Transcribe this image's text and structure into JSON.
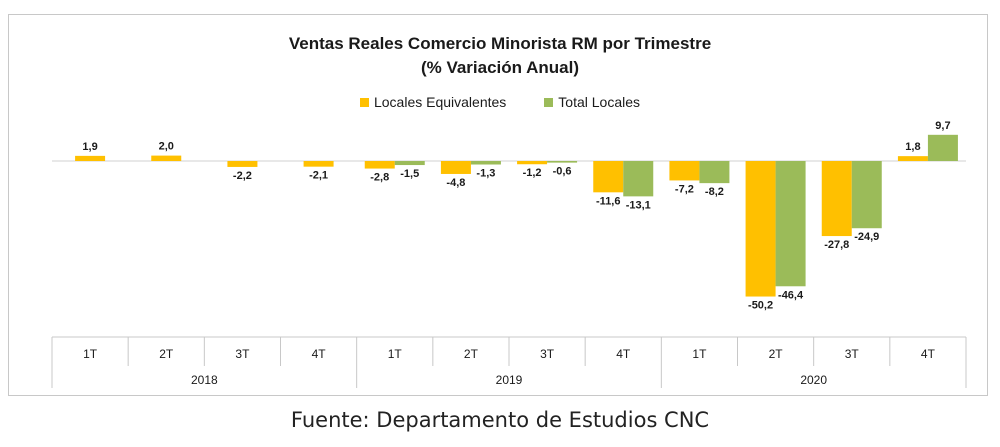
{
  "chart_data": {
    "type": "bar",
    "title": "Ventas Reales Comercio Minorista RM por Trimestre",
    "subtitle": "(% Variación Anual)",
    "categories": [
      "1T",
      "2T",
      "3T",
      "4T",
      "1T",
      "2T",
      "3T",
      "4T",
      "1T",
      "2T",
      "3T",
      "4T"
    ],
    "groups": [
      {
        "label": "2018",
        "count": 4
      },
      {
        "label": "2019",
        "count": 4
      },
      {
        "label": "2020",
        "count": 4
      }
    ],
    "series": [
      {
        "name": "Locales Equivalentes",
        "color": "#FFC000",
        "values": [
          1.9,
          2.0,
          -2.2,
          -2.1,
          -2.8,
          -4.8,
          -1.2,
          -11.6,
          -7.2,
          -50.2,
          -27.8,
          1.8
        ],
        "labels": [
          "1,9",
          "2,0",
          "-2,2",
          "-2,1",
          "-2,8",
          "-4,8",
          "-1,2",
          "-11,6",
          "-7,2",
          "-50,2",
          "-27,8",
          "1,8"
        ]
      },
      {
        "name": "Total Locales",
        "color": "#9BBB59",
        "values": [
          null,
          null,
          null,
          null,
          -1.5,
          -1.3,
          -0.6,
          -13.1,
          -8.2,
          -46.4,
          -24.9,
          9.7
        ],
        "labels": [
          null,
          null,
          null,
          null,
          "-1,5",
          "-1,3",
          "-0,6",
          "-13,1",
          "-8,2",
          "-46,4",
          "-24,9",
          "9,7"
        ]
      }
    ],
    "legend_position": "top-center",
    "grid": false
  },
  "footer": {
    "source": "Fuente: Departamento de Estudios CNC"
  }
}
